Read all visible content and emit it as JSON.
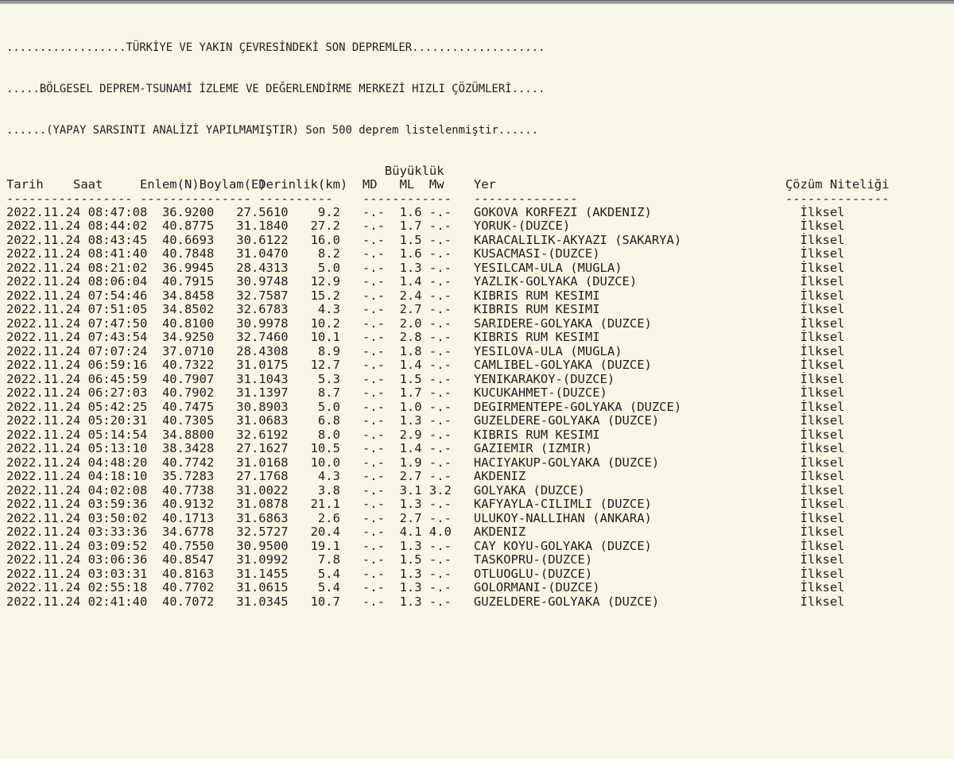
{
  "page": {
    "title_lines": [
      "..................TÜRKİYE VE YAKIN ÇEVRESİNDEKİ SON DEPREMLER....................",
      ".....BÖLGESEL DEPREM-TSUNAMİ İZLEME VE DEĞERLENDİRME MERKEZİ HIZLI ÇÖZÜMLERİ.....",
      "......(YAPAY SARSINTI ANALİZİ YAPILMAMIŞTIR) Son 500 deprem listelenmiştir......"
    ]
  },
  "table": {
    "magnitude_group_label": "Büyüklük",
    "headers": {
      "tarih": "Tarih",
      "saat": "Saat",
      "enlem": "Enlem(N)",
      "boylam": "Boylam(E)",
      "derinlik": "Derinlik(km)",
      "md": "MD",
      "ml": "ML",
      "mw": "Mw",
      "yer": "Yer",
      "nitelik": "Çözüm Niteliği"
    },
    "dashes": {
      "tarih": "----------",
      "saat": "--------",
      "enlem": "--------",
      "boylam": "-------",
      "derinlik": "----------",
      "magnitudes": "------------",
      "yer": "--------------",
      "nitelik": "--------------"
    },
    "rows": [
      {
        "date": "2022.11.24",
        "time": "08:47:08",
        "lat": "36.9200",
        "lon": "27.5610",
        "depth": "9.2",
        "md": "-.-",
        "ml": "1.6",
        "mw": "-.-",
        "location": "GOKOVA KORFEZI (AKDENIZ)",
        "quality": "İlksel"
      },
      {
        "date": "2022.11.24",
        "time": "08:44:02",
        "lat": "40.8775",
        "lon": "31.1840",
        "depth": "27.2",
        "md": "-.-",
        "ml": "1.7",
        "mw": "-.-",
        "location": "YORUK-(DUZCE)",
        "quality": "İlksel"
      },
      {
        "date": "2022.11.24",
        "time": "08:43:45",
        "lat": "40.6693",
        "lon": "30.6122",
        "depth": "16.0",
        "md": "-.-",
        "ml": "1.5",
        "mw": "-.-",
        "location": "KARACALILIK-AKYAZI (SAKARYA)",
        "quality": "İlksel"
      },
      {
        "date": "2022.11.24",
        "time": "08:41:40",
        "lat": "40.7848",
        "lon": "31.0470",
        "depth": "8.2",
        "md": "-.-",
        "ml": "1.6",
        "mw": "-.-",
        "location": "KUSACMASI-(DUZCE)",
        "quality": "İlksel"
      },
      {
        "date": "2022.11.24",
        "time": "08:21:02",
        "lat": "36.9945",
        "lon": "28.4313",
        "depth": "5.0",
        "md": "-.-",
        "ml": "1.3",
        "mw": "-.-",
        "location": "YESILCAM-ULA (MUGLA)",
        "quality": "İlksel"
      },
      {
        "date": "2022.11.24",
        "time": "08:06:04",
        "lat": "40.7915",
        "lon": "30.9748",
        "depth": "12.9",
        "md": "-.-",
        "ml": "1.4",
        "mw": "-.-",
        "location": "YAZLIK-GOLYAKA (DUZCE)",
        "quality": "İlksel"
      },
      {
        "date": "2022.11.24",
        "time": "07:54:46",
        "lat": "34.8458",
        "lon": "32.7587",
        "depth": "15.2",
        "md": "-.-",
        "ml": "2.4",
        "mw": "-.-",
        "location": "KIBRIS RUM KESIMI",
        "quality": "İlksel"
      },
      {
        "date": "2022.11.24",
        "time": "07:51:05",
        "lat": "34.8502",
        "lon": "32.6783",
        "depth": "4.3",
        "md": "-.-",
        "ml": "2.7",
        "mw": "-.-",
        "location": "KIBRIS RUM KESIMI",
        "quality": "İlksel"
      },
      {
        "date": "2022.11.24",
        "time": "07:47:50",
        "lat": "40.8100",
        "lon": "30.9978",
        "depth": "10.2",
        "md": "-.-",
        "ml": "2.0",
        "mw": "-.-",
        "location": "SARIDERE-GOLYAKA (DUZCE)",
        "quality": "İlksel"
      },
      {
        "date": "2022.11.24",
        "time": "07:43:54",
        "lat": "34.9250",
        "lon": "32.7460",
        "depth": "10.1",
        "md": "-.-",
        "ml": "2.8",
        "mw": "-.-",
        "location": "KIBRIS RUM KESIMI",
        "quality": "İlksel"
      },
      {
        "date": "2022.11.24",
        "time": "07:07:24",
        "lat": "37.0710",
        "lon": "28.4308",
        "depth": "8.9",
        "md": "-.-",
        "ml": "1.8",
        "mw": "-.-",
        "location": "YESILOVA-ULA (MUGLA)",
        "quality": "İlksel"
      },
      {
        "date": "2022.11.24",
        "time": "06:59:16",
        "lat": "40.7322",
        "lon": "31.0175",
        "depth": "12.7",
        "md": "-.-",
        "ml": "1.4",
        "mw": "-.-",
        "location": "CAMLIBEL-GOLYAKA (DUZCE)",
        "quality": "İlksel"
      },
      {
        "date": "2022.11.24",
        "time": "06:45:59",
        "lat": "40.7907",
        "lon": "31.1043",
        "depth": "5.3",
        "md": "-.-",
        "ml": "1.5",
        "mw": "-.-",
        "location": "YENIKARAKOY-(DUZCE)",
        "quality": "İlksel"
      },
      {
        "date": "2022.11.24",
        "time": "06:27:03",
        "lat": "40.7902",
        "lon": "31.1397",
        "depth": "8.7",
        "md": "-.-",
        "ml": "1.7",
        "mw": "-.-",
        "location": "KUCUKAHMET-(DUZCE)",
        "quality": "İlksel"
      },
      {
        "date": "2022.11.24",
        "time": "05:42:25",
        "lat": "40.7475",
        "lon": "30.8903",
        "depth": "5.0",
        "md": "-.-",
        "ml": "1.0",
        "mw": "-.-",
        "location": "DEGIRMENTEPE-GOLYAKA (DUZCE)",
        "quality": "İlksel"
      },
      {
        "date": "2022.11.24",
        "time": "05:20:31",
        "lat": "40.7305",
        "lon": "31.0683",
        "depth": "6.8",
        "md": "-.-",
        "ml": "1.3",
        "mw": "-.-",
        "location": "GUZELDERE-GOLYAKA (DUZCE)",
        "quality": "İlksel"
      },
      {
        "date": "2022.11.24",
        "time": "05:14:54",
        "lat": "34.8800",
        "lon": "32.6192",
        "depth": "8.0",
        "md": "-.-",
        "ml": "2.9",
        "mw": "-.-",
        "location": "KIBRIS RUM KESIMI",
        "quality": "İlksel"
      },
      {
        "date": "2022.11.24",
        "time": "05:13:10",
        "lat": "38.3428",
        "lon": "27.1627",
        "depth": "10.5",
        "md": "-.-",
        "ml": "1.4",
        "mw": "-.-",
        "location": "GAZIEMIR (IZMIR)",
        "quality": "İlksel"
      },
      {
        "date": "2022.11.24",
        "time": "04:48:20",
        "lat": "40.7742",
        "lon": "31.0168",
        "depth": "10.0",
        "md": "-.-",
        "ml": "1.9",
        "mw": "-.-",
        "location": "HACIYAKUP-GOLYAKA (DUZCE)",
        "quality": "İlksel"
      },
      {
        "date": "2022.11.24",
        "time": "04:18:10",
        "lat": "35.7283",
        "lon": "27.1768",
        "depth": "4.3",
        "md": "-.-",
        "ml": "2.7",
        "mw": "-.-",
        "location": "AKDENIZ",
        "quality": "İlksel"
      },
      {
        "date": "2022.11.24",
        "time": "04:02:08",
        "lat": "40.7738",
        "lon": "31.0022",
        "depth": "3.8",
        "md": "-.-",
        "ml": "3.1",
        "mw": "3.2",
        "location": "GOLYAKA (DUZCE)",
        "quality": "İlksel"
      },
      {
        "date": "2022.11.24",
        "time": "03:59:36",
        "lat": "40.9132",
        "lon": "31.0878",
        "depth": "21.1",
        "md": "-.-",
        "ml": "1.3",
        "mw": "-.-",
        "location": "KAFYAYLA-CILIMLI (DUZCE)",
        "quality": "İlksel"
      },
      {
        "date": "2022.11.24",
        "time": "03:50:02",
        "lat": "40.1713",
        "lon": "31.6863",
        "depth": "2.6",
        "md": "-.-",
        "ml": "2.7",
        "mw": "-.-",
        "location": "ULUKOY-NALLIHAN (ANKARA)",
        "quality": "İlksel"
      },
      {
        "date": "2022.11.24",
        "time": "03:33:36",
        "lat": "34.6778",
        "lon": "32.5727",
        "depth": "20.4",
        "md": "-.-",
        "ml": "4.1",
        "mw": "4.0",
        "location": "AKDENIZ",
        "quality": "İlksel"
      },
      {
        "date": "2022.11.24",
        "time": "03:09:52",
        "lat": "40.7550",
        "lon": "30.9500",
        "depth": "19.1",
        "md": "-.-",
        "ml": "1.3",
        "mw": "-.-",
        "location": "CAY KOYU-GOLYAKA (DUZCE)",
        "quality": "İlksel"
      },
      {
        "date": "2022.11.24",
        "time": "03:06:36",
        "lat": "40.8547",
        "lon": "31.0992",
        "depth": "7.8",
        "md": "-.-",
        "ml": "1.5",
        "mw": "-.-",
        "location": "TASKOPRU-(DUZCE)",
        "quality": "İlksel"
      },
      {
        "date": "2022.11.24",
        "time": "03:03:31",
        "lat": "40.8163",
        "lon": "31.1455",
        "depth": "5.4",
        "md": "-.-",
        "ml": "1.3",
        "mw": "-.-",
        "location": "OTLUOGLU-(DUZCE)",
        "quality": "İlksel"
      },
      {
        "date": "2022.11.24",
        "time": "02:55:18",
        "lat": "40.7702",
        "lon": "31.0615",
        "depth": "5.4",
        "md": "-.-",
        "ml": "1.3",
        "mw": "-.-",
        "location": "GOLORMANI-(DUZCE)",
        "quality": "İlksel"
      },
      {
        "date": "2022.11.24",
        "time": "02:41:40",
        "lat": "40.7072",
        "lon": "31.0345",
        "depth": "10.7",
        "md": "-.-",
        "ml": "1.3",
        "mw": "-.-",
        "location": "GUZELDERE-GOLYAKA (DUZCE)",
        "quality": "İlksel"
      }
    ]
  },
  "colors": {
    "background": "#f8f6e4",
    "text": "#1f1f1f",
    "top_edge": "#989898"
  }
}
